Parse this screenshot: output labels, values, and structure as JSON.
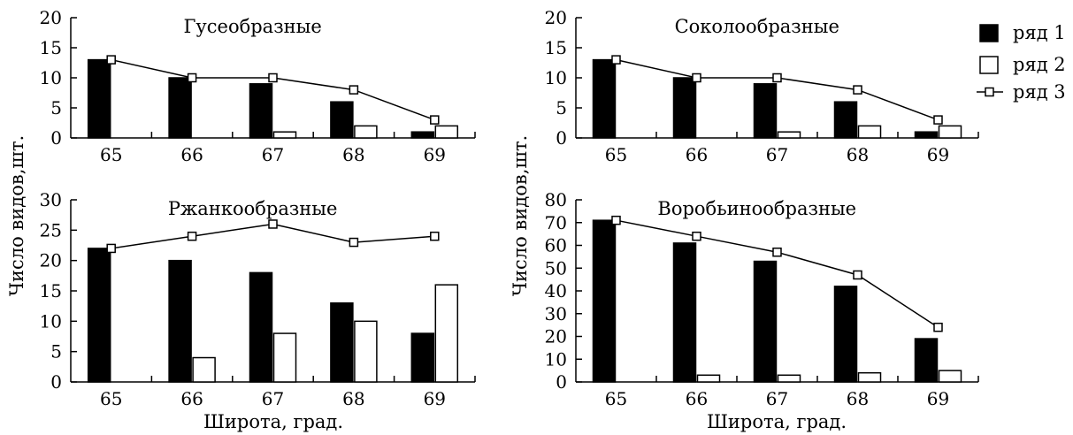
{
  "labels": {
    "ylabel": "Число видов,шт.",
    "xlabel": "Широта, град."
  },
  "legend": [
    {
      "name": "ряд 1",
      "style": "filled"
    },
    {
      "name": "ряд 2",
      "style": "open"
    },
    {
      "name": "ряд 3",
      "style": "line"
    }
  ],
  "colors": {
    "ink": "#000000",
    "paper": "#ffffff"
  },
  "chart_data": [
    {
      "type": "bar",
      "title": "Гусеобразные",
      "categories": [
        "65",
        "66",
        "67",
        "68",
        "69"
      ],
      "ylim": [
        0,
        20
      ],
      "yticks": [
        0,
        5,
        10,
        15,
        20
      ],
      "series": [
        {
          "name": "ряд 1",
          "kind": "bar",
          "values": [
            13,
            10,
            9,
            6,
            1
          ]
        },
        {
          "name": "ряд 2",
          "kind": "bar",
          "values": [
            0,
            0,
            1,
            2,
            2
          ]
        },
        {
          "name": "ряд 3",
          "kind": "line",
          "values": [
            13,
            10,
            10,
            8,
            3
          ]
        }
      ]
    },
    {
      "type": "bar",
      "title": "Соколообразные",
      "categories": [
        "65",
        "66",
        "67",
        "68",
        "69"
      ],
      "ylim": [
        0,
        20
      ],
      "yticks": [
        0,
        5,
        10,
        15,
        20
      ],
      "series": [
        {
          "name": "ряд 1",
          "kind": "bar",
          "values": [
            13,
            10,
            9,
            6,
            1
          ]
        },
        {
          "name": "ряд 2",
          "kind": "bar",
          "values": [
            0,
            0,
            1,
            2,
            2
          ]
        },
        {
          "name": "ряд 3",
          "kind": "line",
          "values": [
            13,
            10,
            10,
            8,
            3
          ]
        }
      ]
    },
    {
      "type": "bar",
      "title": "Ржанкообразные",
      "categories": [
        "65",
        "66",
        "67",
        "68",
        "69"
      ],
      "ylim": [
        0,
        30
      ],
      "yticks": [
        0,
        5,
        10,
        15,
        20,
        25,
        30
      ],
      "series": [
        {
          "name": "ряд 1",
          "kind": "bar",
          "values": [
            22,
            20,
            18,
            13,
            8
          ]
        },
        {
          "name": "ряд 2",
          "kind": "bar",
          "values": [
            0,
            4,
            8,
            10,
            16
          ]
        },
        {
          "name": "ряд 3",
          "kind": "line",
          "values": [
            22,
            24,
            26,
            23,
            24
          ]
        }
      ]
    },
    {
      "type": "bar",
      "title": "Воробьинообразные",
      "categories": [
        "65",
        "66",
        "67",
        "68",
        "69"
      ],
      "ylim": [
        0,
        80
      ],
      "yticks": [
        0,
        10,
        20,
        30,
        40,
        50,
        60,
        70,
        80
      ],
      "series": [
        {
          "name": "ряд 1",
          "kind": "bar",
          "values": [
            71,
            61,
            53,
            42,
            19
          ]
        },
        {
          "name": "ряд 2",
          "kind": "bar",
          "values": [
            0,
            3,
            3,
            4,
            5
          ]
        },
        {
          "name": "ряд 3",
          "kind": "line",
          "values": [
            71,
            64,
            57,
            47,
            24
          ]
        }
      ]
    }
  ]
}
